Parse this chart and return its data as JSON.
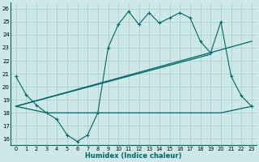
{
  "xlabel": "Humidex (Indice chaleur)",
  "bg_color": "#cce8e8",
  "grid_color": "#aacccc",
  "line_color": "#006666",
  "xlim": [
    -0.5,
    23.5
  ],
  "ylim": [
    15.5,
    26.5
  ],
  "yticks": [
    16,
    17,
    18,
    19,
    20,
    21,
    22,
    23,
    24,
    25,
    26
  ],
  "xticks": [
    0,
    1,
    2,
    3,
    4,
    5,
    6,
    7,
    8,
    9,
    10,
    11,
    12,
    13,
    14,
    15,
    16,
    17,
    18,
    19,
    20,
    21,
    22,
    23
  ],
  "line1_x": [
    0,
    1,
    2,
    3,
    4,
    5,
    6,
    7,
    8,
    9,
    10,
    11,
    12,
    13,
    14,
    15,
    16,
    17,
    18,
    19,
    20,
    21,
    22,
    23
  ],
  "line1_y": [
    20.8,
    19.4,
    18.6,
    18.0,
    17.5,
    16.3,
    15.8,
    16.3,
    18.0,
    23.0,
    24.8,
    25.8,
    24.8,
    25.7,
    24.9,
    25.3,
    25.7,
    25.3,
    23.5,
    22.6,
    25.0,
    20.8,
    19.3,
    18.5
  ],
  "line2_x": [
    0,
    3,
    20,
    23
  ],
  "line2_y": [
    18.5,
    18.0,
    18.0,
    18.5
  ],
  "line3_x": [
    0,
    23
  ],
  "line3_y": [
    18.5,
    23.5
  ],
  "line4_x": [
    0,
    19
  ],
  "line4_y": [
    18.5,
    22.5
  ]
}
